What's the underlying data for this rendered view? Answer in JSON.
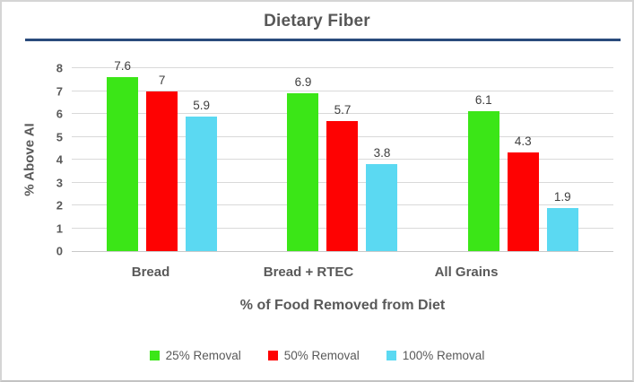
{
  "title": "Dietary Fiber",
  "chart_data": {
    "type": "bar",
    "title": "Dietary Fiber",
    "categories": [
      "Bread",
      "Bread + RTEC",
      "All Grains"
    ],
    "series": [
      {
        "name": "25% Removal",
        "color": "#3be617",
        "values": [
          7.6,
          6.9,
          6.1
        ]
      },
      {
        "name": "50% Removal",
        "color": "#fe0202",
        "values": [
          7,
          5.7,
          4.3
        ]
      },
      {
        "name": "100% Removal",
        "color": "#5bd9f2",
        "values": [
          5.9,
          3.8,
          1.9
        ]
      }
    ],
    "xlabel": "% of Food Removed from Diet",
    "ylabel": "% Above AI",
    "ylim": [
      0,
      8
    ],
    "ytick_step": 1,
    "yticks": [
      0,
      1,
      2,
      3,
      4,
      5,
      6,
      7,
      8
    ],
    "grid": true,
    "legend_position": "bottom",
    "data_labels_shown": true,
    "colors": {
      "title_text": "#575757",
      "axis_text": "#595959",
      "data_label_text": "#3f3f3f",
      "gridline": "#d9d9d9",
      "accent_rule": "#2a4b7c",
      "background": "#ffffff"
    }
  }
}
